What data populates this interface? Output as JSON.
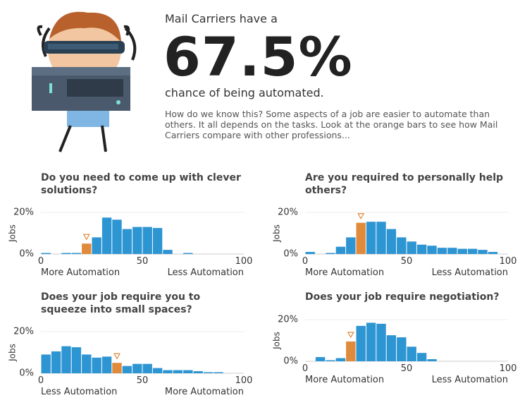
{
  "header": {
    "intro": "Mail Carriers have a",
    "percent": "67.5%",
    "outro": "chance of being automated.",
    "description": "How do we know this? Some aspects of a job are easier to automate than others. It all depends on the tasks. Look at the orange bars to see how Mail Carriers compare with other professions..."
  },
  "chart_data": [
    {
      "type": "histogram",
      "title": "Do you need to come up with clever solutions?",
      "ylabel": "Jobs",
      "xlabel_left": "More Automation",
      "xlabel_right": "Less Automation",
      "bins": [
        0,
        5,
        10,
        15,
        20,
        25,
        30,
        35,
        40,
        45,
        50,
        55,
        60,
        65,
        70,
        75,
        80,
        85,
        90,
        95,
        100
      ],
      "values": [
        0.5,
        0,
        0.5,
        0.5,
        5,
        8,
        17.5,
        16.5,
        12,
        13,
        13,
        12.5,
        2,
        0,
        0.5,
        0,
        0,
        0,
        0,
        0
      ],
      "color": "#2e95d3",
      "highlight_color": "#e08a3c",
      "highlight": 4,
      "xlim": [
        0,
        100
      ],
      "ylim": [
        0,
        20
      ],
      "xticks": [
        0,
        50,
        100
      ],
      "yticks": [
        {
          "value": 0,
          "label": "0%"
        },
        {
          "value": 20,
          "label": "20%"
        }
      ]
    },
    {
      "type": "histogram",
      "title": "Are you required to personally help others?",
      "ylabel": "Jobs",
      "xlabel_left": "More Automation",
      "xlabel_right": "Less Automation",
      "bins": [
        0,
        5,
        10,
        15,
        20,
        25,
        30,
        35,
        40,
        45,
        50,
        55,
        60,
        65,
        70,
        75,
        80,
        85,
        90,
        95,
        100
      ],
      "values": [
        1,
        0,
        0.5,
        3.5,
        8,
        15,
        15.5,
        15.5,
        12,
        8,
        6,
        4.5,
        4,
        3,
        3,
        2.5,
        2.5,
        2,
        1,
        0
      ],
      "color": "#2e95d3",
      "highlight_color": "#e08a3c",
      "highlight": 5,
      "xlim": [
        0,
        100
      ],
      "ylim": [
        0,
        20
      ],
      "xticks": [
        0,
        50,
        100
      ],
      "yticks": [
        {
          "value": 0,
          "label": "0%"
        },
        {
          "value": 20,
          "label": "20%"
        }
      ]
    },
    {
      "type": "histogram",
      "title": "Does your job require you to squeeze into small spaces?",
      "ylabel": "Jobs",
      "xlabel_left": "Less Automation",
      "xlabel_right": "More Automation",
      "bins": [
        0,
        5,
        10,
        15,
        20,
        25,
        30,
        35,
        40,
        45,
        50,
        55,
        60,
        65,
        70,
        75,
        80,
        85,
        90,
        95,
        100
      ],
      "values": [
        9,
        10.5,
        13,
        12.5,
        9,
        7.5,
        8,
        5,
        3.5,
        4.5,
        4.5,
        2.5,
        1.5,
        1.5,
        1.5,
        1,
        0.5,
        0.5,
        0,
        0
      ],
      "color": "#2e95d3",
      "highlight_color": "#e08a3c",
      "highlight": 7,
      "xlim": [
        0,
        100
      ],
      "ylim": [
        0,
        20
      ],
      "xticks": [
        0,
        50,
        100
      ],
      "yticks": [
        {
          "value": 0,
          "label": "0%"
        },
        {
          "value": 20,
          "label": "20%"
        }
      ]
    },
    {
      "type": "histogram",
      "title": "Does your job require negotiation?",
      "ylabel": "Jobs",
      "xlabel_left": "More Automation",
      "xlabel_right": "Less Automation",
      "bins": [
        0,
        5,
        10,
        15,
        20,
        25,
        30,
        35,
        40,
        45,
        50,
        55,
        60,
        65,
        70,
        75,
        80,
        85,
        90,
        95,
        100
      ],
      "values": [
        0,
        2,
        0.5,
        1.5,
        9.5,
        17,
        18.5,
        18,
        12.5,
        11.5,
        7,
        4,
        1,
        0,
        0,
        0,
        0,
        0,
        0,
        0
      ],
      "color": "#2e95d3",
      "highlight_color": "#e08a3c",
      "highlight": 4,
      "xlim": [
        0,
        100
      ],
      "ylim": [
        0,
        20
      ],
      "xticks": [
        0,
        50,
        100
      ],
      "yticks": [
        {
          "value": 0,
          "label": "0%"
        },
        {
          "value": 20,
          "label": "20%"
        }
      ]
    }
  ]
}
